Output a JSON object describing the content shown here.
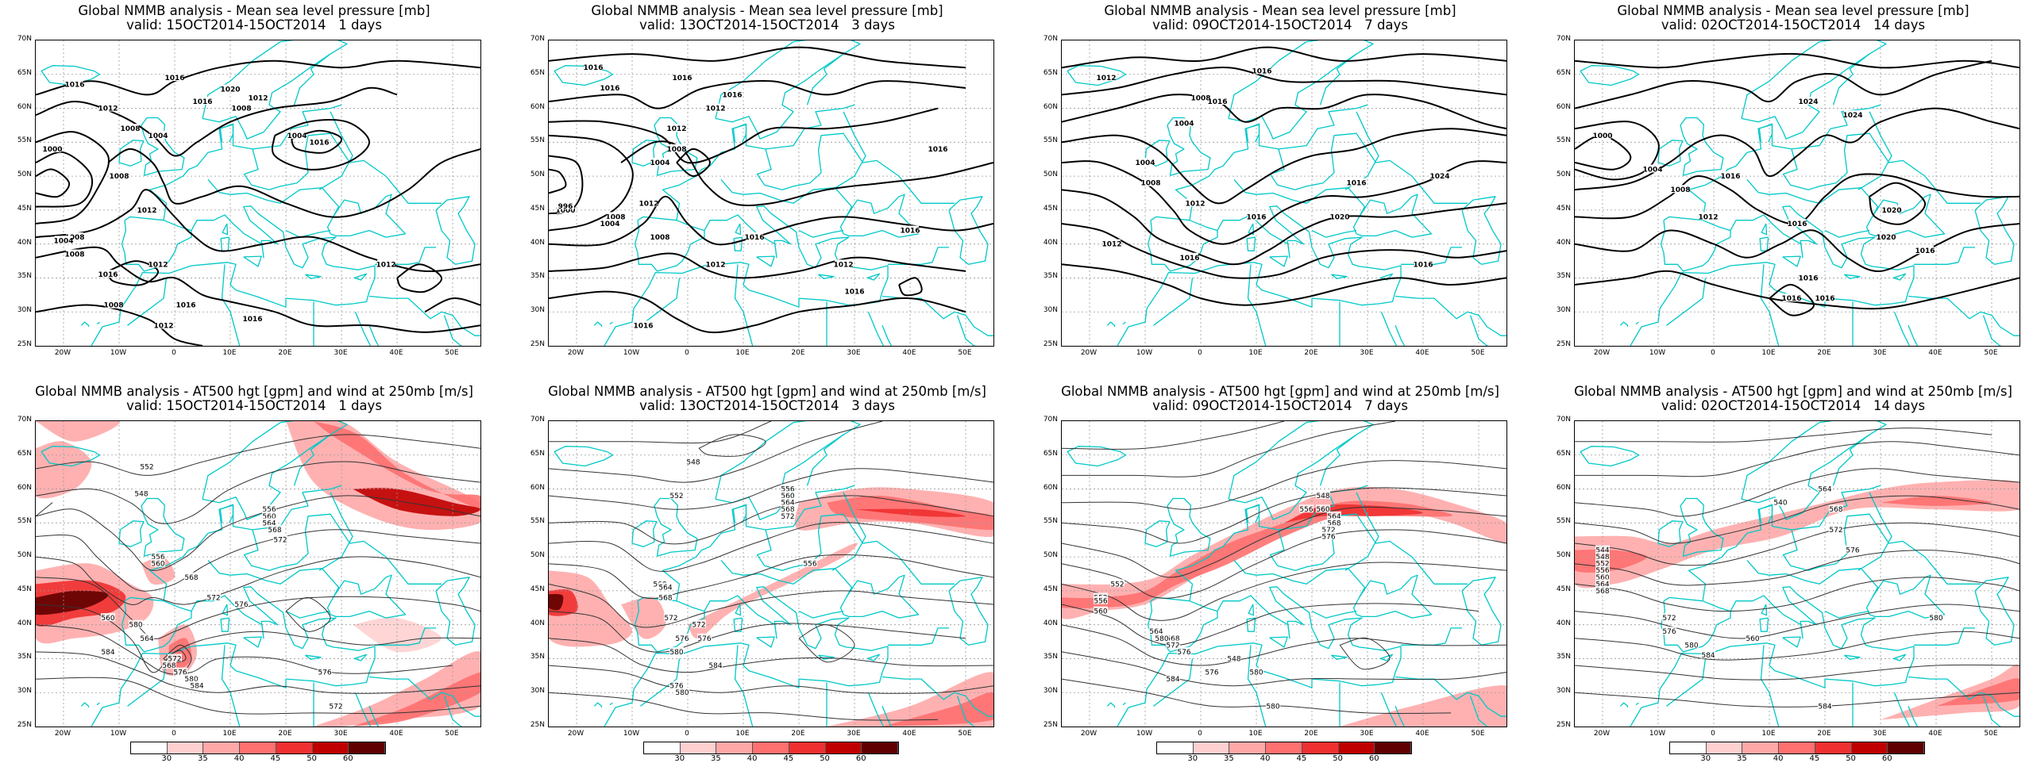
{
  "colors": {
    "coast": "#00c8c8",
    "grid": "#9a9a9a",
    "slp_contour": "#000000",
    "hgt_contour": "#333333",
    "wind_scale": [
      "#ffffff",
      "#ffd0d0",
      "#ffa8a8",
      "#ff7070",
      "#f03030",
      "#c00000",
      "#600000"
    ]
  },
  "axes": {
    "lat_labels": [
      "70N",
      "65N",
      "60N",
      "55N",
      "50N",
      "45N",
      "40N",
      "35N",
      "30N",
      "25N"
    ],
    "lon_labels": [
      "20W",
      "10W",
      "0",
      "10E",
      "20E",
      "30E",
      "40E",
      "50E"
    ]
  },
  "panels_top": [
    {
      "title": "Global NMMB analysis - Mean sea level pressure [mb]",
      "subtitle": "valid: 15OCT2014-15OCT2014   1 days",
      "contour_labels": [
        "1016",
        "1016",
        "1020",
        "1016",
        "1012",
        "1008",
        "1004",
        "1016",
        "1012",
        "1008",
        "1004",
        "1000",
        "1008",
        "1012",
        "1008",
        "1004",
        "1008",
        "1016",
        "1012",
        "1008",
        "1016",
        "1016",
        "1012",
        "1012"
      ]
    },
    {
      "title": "Global NMMB analysis - Mean sea level pressure [mb]",
      "subtitle": "valid: 13OCT2014-15OCT2014   3 days",
      "contour_labels": [
        "1016",
        "1016",
        "1016",
        "1016",
        "1012",
        "1012",
        "1008",
        "1004",
        "1016",
        "1012",
        "1008",
        "1000",
        "996",
        "1004",
        "1008",
        "1016",
        "1012",
        "1012",
        "1016",
        "1016",
        "1016"
      ]
    },
    {
      "title": "Global NMMB analysis - Mean sea level pressure [mb]",
      "subtitle": "valid: 09OCT2014-15OCT2014   7 days",
      "contour_labels": [
        "1012",
        "1016",
        "1016",
        "1008",
        "1004",
        "1004",
        "1008",
        "1012",
        "1016",
        "1024",
        "1020",
        "1016",
        "1016",
        "1012",
        "1016"
      ]
    },
    {
      "title": "Global NMMB analysis - Mean sea level pressure [mb]",
      "subtitle": "valid: 02OCT2014-15OCT2014   14 days",
      "contour_labels": [
        "1024",
        "1024",
        "1000",
        "1004",
        "1008",
        "1012",
        "1016",
        "1016",
        "1020",
        "1020",
        "1016",
        "1016",
        "1016",
        "1016"
      ]
    }
  ],
  "panels_bottom": [
    {
      "title": "Global NMMB analysis - AT500 hgt [gpm] and wind at 250mb [m/s]",
      "subtitle": "valid: 15OCT2014-15OCT2014   1 days",
      "contour_labels": [
        "552",
        "548",
        "556",
        "560",
        "564",
        "568",
        "572",
        "556",
        "560",
        "568",
        "572",
        "576",
        "580",
        "564",
        "568",
        "572",
        "576",
        "580",
        "584",
        "560",
        "584",
        "576",
        "572"
      ]
    },
    {
      "title": "Global NMMB analysis - AT500 hgt [gpm] and wind at 250mb [m/s]",
      "subtitle": "valid: 13OCT2014-15OCT2014   3 days",
      "contour_labels": [
        "548",
        "552",
        "556",
        "560",
        "564",
        "568",
        "572",
        "556",
        "560",
        "564",
        "568",
        "572",
        "576",
        "580",
        "572",
        "576",
        "580",
        "584",
        "576"
      ]
    },
    {
      "title": "Global NMMB analysis - AT500 hgt [gpm] and wind at 250mb [m/s]",
      "subtitle": "valid: 09OCT2014-15OCT2014   7 days",
      "contour_labels": [
        "548",
        "552",
        "556",
        "560",
        "564",
        "568",
        "572",
        "576",
        "548",
        "552",
        "556",
        "560",
        "564",
        "568",
        "572",
        "576",
        "580",
        "584",
        "576",
        "580",
        "580"
      ]
    },
    {
      "title": "Global NMMB analysis - AT500 hgt [gpm] and wind at 250mb [m/s]",
      "subtitle": "valid: 02OCT2014-15OCT2014   14 days",
      "contour_labels": [
        "540",
        "544",
        "548",
        "552",
        "556",
        "560",
        "564",
        "568",
        "572",
        "576",
        "580",
        "584",
        "560",
        "564",
        "568",
        "572",
        "576",
        "580",
        "584"
      ]
    }
  ],
  "colorbar": {
    "ticks": [
      "30",
      "35",
      "40",
      "45",
      "50",
      "60"
    ]
  }
}
